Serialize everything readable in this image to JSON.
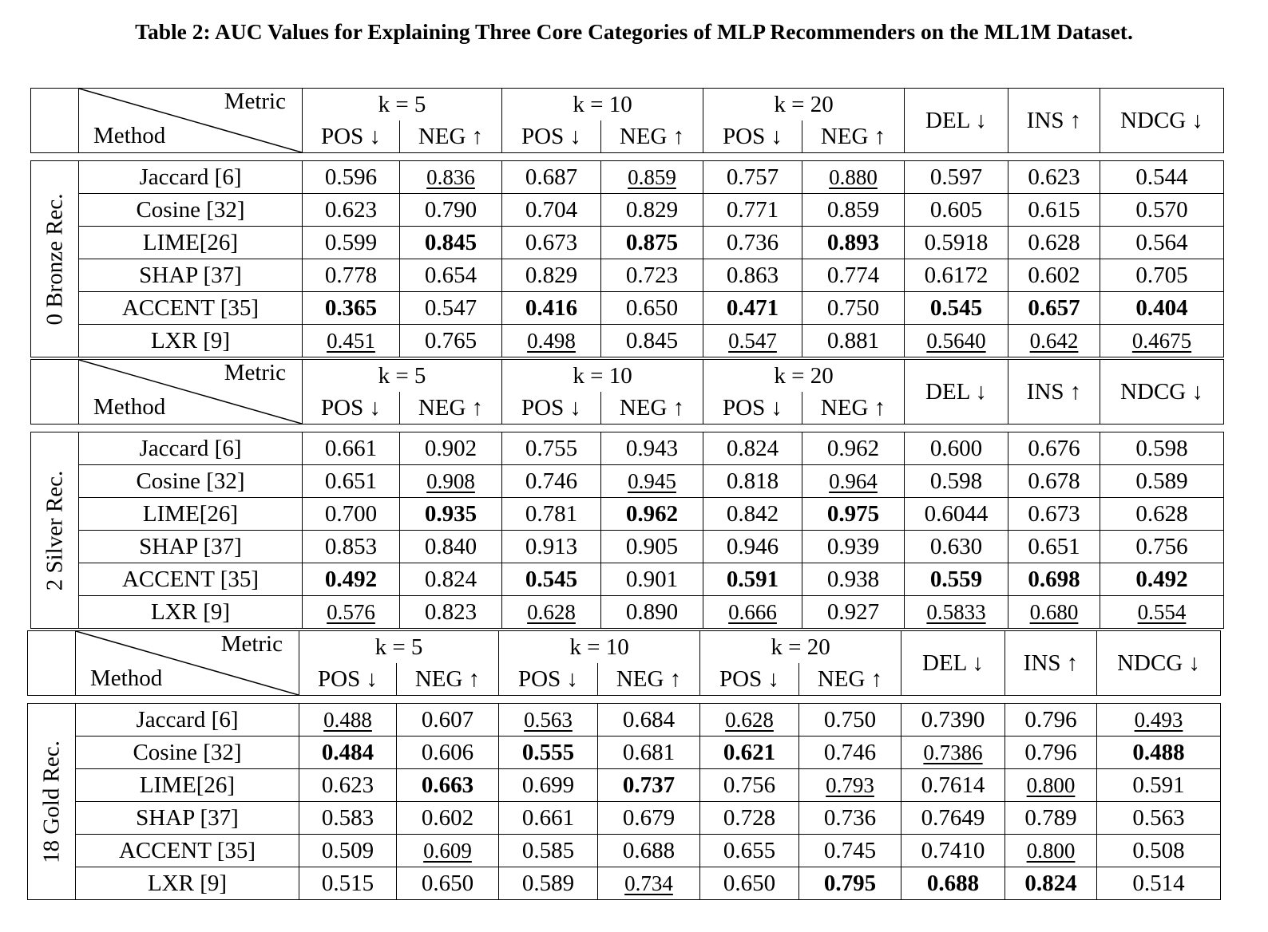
{
  "caption": "Table 2: AUC Values for Explaining Three Core Categories of MLP Recommenders on the ML1M Dataset.",
  "header": {
    "metric": "Metric",
    "method": "Method",
    "k_groups": [
      "k = 5",
      "k = 10",
      "k = 20"
    ],
    "pos": "POS ↓",
    "neg": "NEG ↑",
    "del": "DEL ↓",
    "ins": "INS ↑",
    "ndcg": "NDCG ↓"
  },
  "sections": [
    {
      "label": "0 Bronze Rec.",
      "rows": [
        {
          "method": "Jaccard [6]",
          "values": [
            "0.596",
            "0.836",
            "0.687",
            "0.859",
            "0.757",
            "0.880",
            "0.597",
            "0.623",
            "0.544"
          ],
          "fmt": [
            "",
            "u",
            "",
            "u",
            "",
            "u",
            "",
            "",
            ""
          ]
        },
        {
          "method": "Cosine [32]",
          "values": [
            "0.623",
            "0.790",
            "0.704",
            "0.829",
            "0.771",
            "0.859",
            "0.605",
            "0.615",
            "0.570"
          ],
          "fmt": [
            "",
            "",
            "",
            "",
            "",
            "",
            "",
            "",
            ""
          ]
        },
        {
          "method": "LIME[26]",
          "values": [
            "0.599",
            "0.845",
            "0.673",
            "0.875",
            "0.736",
            "0.893",
            "0.5918",
            "0.628",
            "0.564"
          ],
          "fmt": [
            "",
            "b",
            "",
            "b",
            "",
            "b",
            "",
            "",
            ""
          ]
        },
        {
          "method": "SHAP [37]",
          "values": [
            "0.778",
            "0.654",
            "0.829",
            "0.723",
            "0.863",
            "0.774",
            "0.6172",
            "0.602",
            "0.705"
          ],
          "fmt": [
            "",
            "",
            "",
            "",
            "",
            "",
            "",
            "",
            ""
          ]
        },
        {
          "method": "ACCENT [35]",
          "values": [
            "0.365",
            "0.547",
            "0.416",
            "0.650",
            "0.471",
            "0.750",
            "0.545",
            "0.657",
            "0.404"
          ],
          "fmt": [
            "b",
            "",
            "b",
            "",
            "b",
            "",
            "b",
            "b",
            "b"
          ]
        },
        {
          "method": "LXR [9]",
          "values": [
            "0.451",
            "0.765",
            "0.498",
            "0.845",
            "0.547",
            "0.881",
            "0.5640",
            "0.642",
            "0.4675"
          ],
          "fmt": [
            "u",
            "",
            "u",
            "",
            "u",
            "",
            "u",
            "u",
            "u"
          ]
        }
      ]
    },
    {
      "label": "2 Silver Rec.",
      "rows": [
        {
          "method": "Jaccard [6]",
          "values": [
            "0.661",
            "0.902",
            "0.755",
            "0.943",
            "0.824",
            "0.962",
            "0.600",
            "0.676",
            "0.598"
          ],
          "fmt": [
            "",
            "",
            "",
            "",
            "",
            "",
            "",
            "",
            ""
          ]
        },
        {
          "method": "Cosine [32]",
          "values": [
            "0.651",
            "0.908",
            "0.746",
            "0.945",
            "0.818",
            "0.964",
            "0.598",
            "0.678",
            "0.589"
          ],
          "fmt": [
            "",
            "u",
            "",
            "u",
            "",
            "u",
            "",
            "",
            ""
          ]
        },
        {
          "method": "LIME[26]",
          "values": [
            "0.700",
            "0.935",
            "0.781",
            "0.962",
            "0.842",
            "0.975",
            "0.6044",
            "0.673",
            "0.628"
          ],
          "fmt": [
            "",
            "b",
            "",
            "b",
            "",
            "b",
            "",
            "",
            ""
          ]
        },
        {
          "method": "SHAP [37]",
          "values": [
            "0.853",
            "0.840",
            "0.913",
            "0.905",
            "0.946",
            "0.939",
            "0.630",
            "0.651",
            "0.756"
          ],
          "fmt": [
            "",
            "",
            "",
            "",
            "",
            "",
            "",
            "",
            ""
          ]
        },
        {
          "method": "ACCENT [35]",
          "values": [
            "0.492",
            "0.824",
            "0.545",
            "0.901",
            "0.591",
            "0.938",
            "0.559",
            "0.698",
            "0.492"
          ],
          "fmt": [
            "b",
            "",
            "b",
            "",
            "b",
            "",
            "b",
            "b",
            "b"
          ]
        },
        {
          "method": "LXR [9]",
          "values": [
            "0.576",
            "0.823",
            "0.628",
            "0.890",
            "0.666",
            "0.927",
            "0.5833",
            "0.680",
            "0.554"
          ],
          "fmt": [
            "u",
            "",
            "u",
            "",
            "u",
            "",
            "u",
            "u",
            "u"
          ]
        }
      ]
    },
    {
      "label": "18 Gold Rec.",
      "rows": [
        {
          "method": "Jaccard [6]",
          "values": [
            "0.488",
            "0.607",
            "0.563",
            "0.684",
            "0.628",
            "0.750",
            "0.7390",
            "0.796",
            "0.493"
          ],
          "fmt": [
            "u",
            "",
            "u",
            "",
            "u",
            "",
            "",
            "",
            "u"
          ]
        },
        {
          "method": "Cosine [32]",
          "values": [
            "0.484",
            "0.606",
            "0.555",
            "0.681",
            "0.621",
            "0.746",
            "0.7386",
            "0.796",
            "0.488"
          ],
          "fmt": [
            "b",
            "",
            "b",
            "",
            "b",
            "",
            "u",
            "",
            "b"
          ]
        },
        {
          "method": "LIME[26]",
          "values": [
            "0.623",
            "0.663",
            "0.699",
            "0.737",
            "0.756",
            "0.793",
            "0.7614",
            "0.800",
            "0.591"
          ],
          "fmt": [
            "",
            "b",
            "",
            "b",
            "",
            "u",
            "",
            "u",
            ""
          ]
        },
        {
          "method": "SHAP [37]",
          "values": [
            "0.583",
            "0.602",
            "0.661",
            "0.679",
            "0.728",
            "0.736",
            "0.7649",
            "0.789",
            "0.563"
          ],
          "fmt": [
            "",
            "",
            "",
            "",
            "",
            "",
            "",
            "",
            ""
          ]
        },
        {
          "method": "ACCENT [35]",
          "values": [
            "0.509",
            "0.609",
            "0.585",
            "0.688",
            "0.655",
            "0.745",
            "0.7410",
            "0.800",
            "0.508"
          ],
          "fmt": [
            "",
            "u",
            "",
            "",
            "",
            "",
            "",
            "u",
            ""
          ]
        },
        {
          "method": "LXR [9]",
          "values": [
            "0.515",
            "0.650",
            "0.589",
            "0.734",
            "0.650",
            "0.795",
            "0.688",
            "0.824",
            "0.514"
          ],
          "fmt": [
            "",
            "",
            "",
            "u",
            "",
            "b",
            "b",
            "b",
            ""
          ]
        }
      ]
    }
  ]
}
